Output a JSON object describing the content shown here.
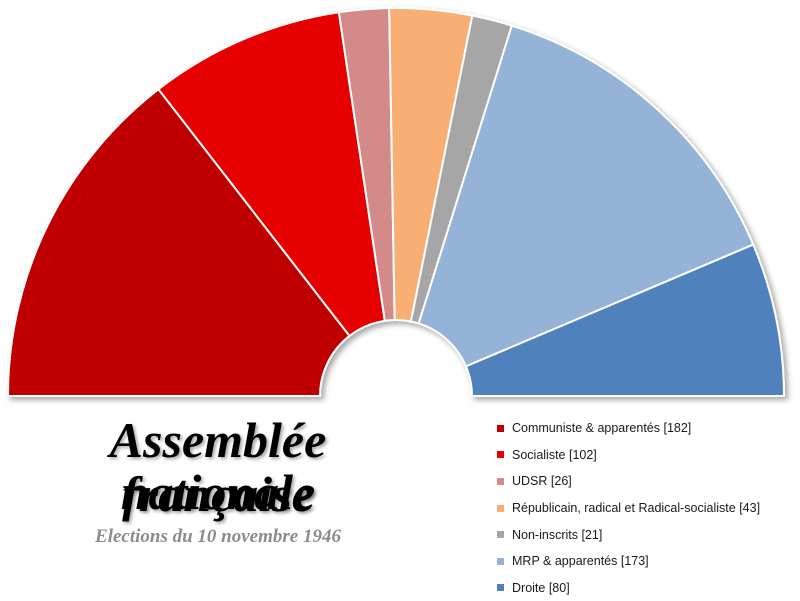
{
  "title": {
    "line1": "Assemblée nationale",
    "line2": "française"
  },
  "subtitle": "Elections du 10 novembre 1946",
  "chart_data": {
    "type": "pie",
    "categories": [
      "Communiste & apparentés",
      "Socialiste",
      "UDSR",
      "Républicain, radical et Radical-socialiste",
      "Non-inscrits",
      "MRP & apparentés",
      "Droite"
    ],
    "values": [
      182,
      102,
      26,
      43,
      21,
      173,
      80
    ],
    "colors": [
      "#c00000",
      "#e60000",
      "#d58a8a",
      "#f9ae73",
      "#a6a6a6",
      "#95b3d7",
      "#4f81bd"
    ],
    "legend_labels": [
      "Communiste & apparentés [182]",
      "Socialiste [102]",
      "UDSR [26]",
      "Républicain, radical et Radical-socialiste [43]",
      "Non-inscrits [21]",
      "MRP & apparentés [173]",
      "Droite [80]"
    ],
    "legend_position": "bottom-right"
  }
}
